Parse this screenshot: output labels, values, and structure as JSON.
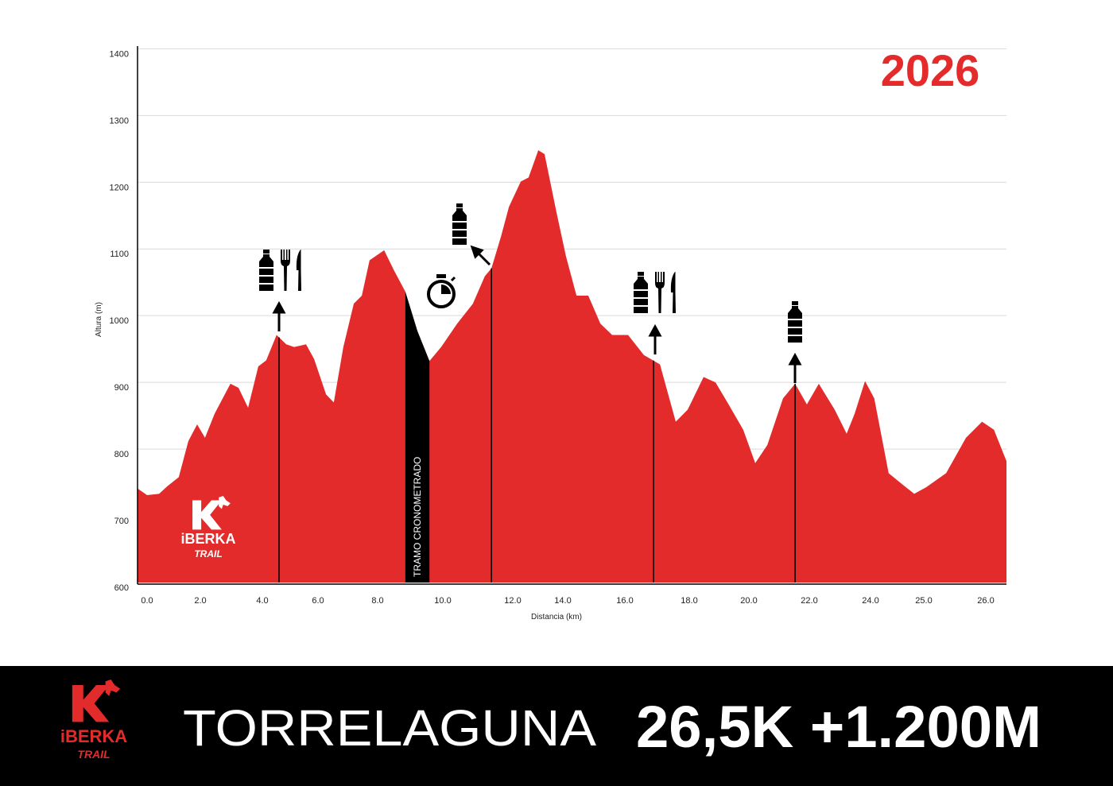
{
  "chart_data": {
    "type": "area",
    "title": "2026",
    "x_label": "Distancia (km)",
    "y_label": "Altura (m)",
    "x": [
      -0.36,
      0,
      0.45,
      0.75,
      1.19,
      1.55,
      1.88,
      2.15,
      2.46,
      2.97,
      3.23,
      3.54,
      3.87,
      4.14,
      4.51,
      4.86,
      5.14,
      5.57,
      5.86,
      6.27,
      6.53,
      6.85,
      7.2,
      7.47,
      7.73,
      8.2,
      8.49,
      8.85,
      9.22,
      9.59,
      9.95,
      10.41,
      10.86,
      11.2,
      11.39,
      11.66,
      11.89,
      12.32,
      12.63,
      13.02,
      13.27,
      13.75,
      14.1,
      14.44,
      14.82,
      15.21,
      15.59,
      16.1,
      16.59,
      17.09,
      17.58,
      17.95,
      18.48,
      18.88,
      19.28,
      19.81,
      20.21,
      20.61,
      21.13,
      21.53,
      21.92,
      22.31,
      22.83,
      23.22,
      23.48,
      23.82,
      24.07,
      24.34,
      24.6,
      24.82,
      25.04,
      25.36,
      25.68,
      25.94,
      26.13,
      26.33
    ],
    "values": [
      741,
      731,
      733,
      744,
      758,
      812,
      837,
      817,
      853,
      898,
      892,
      862,
      924,
      933,
      971,
      957,
      953,
      957,
      935,
      882,
      870,
      953,
      1018,
      1030,
      1083,
      1098,
      1069,
      1036,
      977,
      932,
      953,
      988,
      1018,
      1059,
      1071,
      1118,
      1163,
      1201,
      1207,
      1248,
      1242,
      1154,
      1089,
      1030,
      1030,
      988,
      971,
      971,
      941,
      927,
      841,
      859,
      908,
      900,
      870,
      829,
      779,
      806,
      876,
      898,
      867,
      898,
      859,
      823,
      853,
      902,
      876,
      764,
      747,
      733,
      743,
      764,
      817,
      841,
      829,
      782
    ],
    "color": "#e32b2b",
    "timed_section": {
      "label": "TRAMO CRONOMETRADO",
      "start": 8.85,
      "end": 9.59,
      "color": "#000000"
    },
    "aid_stations": [
      4.6,
      11.39,
      16.89,
      21.53
    ],
    "xlim": [
      -0.36,
      26.33
    ],
    "ylim": [
      600,
      1404
    ],
    "xticks": [
      {
        "value": 0,
        "label": "0.0"
      },
      {
        "value": 2,
        "label": "2.0"
      },
      {
        "value": 4,
        "label": "4.0"
      },
      {
        "value": 6,
        "label": "6.0"
      },
      {
        "value": 8,
        "label": "8.0"
      },
      {
        "value": 10,
        "label": "10.0"
      },
      {
        "value": 12,
        "label": "12.0"
      },
      {
        "value": 14,
        "label": "14.0"
      },
      {
        "value": 16,
        "label": "16.0"
      },
      {
        "value": 18,
        "label": "18.0"
      },
      {
        "value": 20,
        "label": "20.0"
      },
      {
        "value": 22,
        "label": "22.0"
      },
      {
        "value": 24,
        "label": "24.0"
      },
      {
        "value": 25,
        "label": "25.0"
      },
      {
        "value": 26,
        "label": "26.0"
      }
    ],
    "yticks": [
      600,
      700,
      800,
      900,
      1000,
      1100,
      1200,
      1300,
      1400
    ],
    "grid": true
  },
  "footer": {
    "logo_top": "iBERKA",
    "logo_bottom": "TRAIL",
    "place": "TORRELAGUNA",
    "stats": "26,5K +1.200M"
  }
}
